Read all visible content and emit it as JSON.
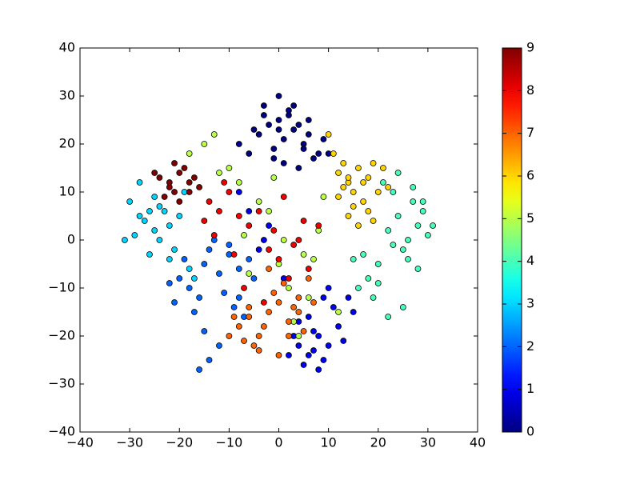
{
  "chart_data": {
    "type": "scatter",
    "colormap": "jet",
    "clim": [
      0,
      9
    ],
    "cticks": [
      0,
      1,
      2,
      3,
      4,
      5,
      6,
      7,
      8,
      9
    ],
    "xlim": [
      -40,
      40
    ],
    "ylim": [
      -40,
      40
    ],
    "xticks": [
      {
        "value": -40,
        "label": "−40"
      },
      {
        "value": -30,
        "label": "−30"
      },
      {
        "value": -20,
        "label": "−20"
      },
      {
        "value": -10,
        "label": "−10"
      },
      0,
      10,
      20,
      30,
      40
    ],
    "yticks": [
      {
        "value": -40,
        "label": "−40"
      },
      {
        "value": -30,
        "label": "−30"
      },
      {
        "value": -20,
        "label": "−20"
      },
      {
        "value": -10,
        "label": "−10"
      },
      0,
      10,
      20,
      30,
      40
    ],
    "series": [
      {
        "class": 0,
        "x": [
          -4,
          -2,
          0,
          1,
          3,
          5,
          -6,
          -1,
          2,
          4,
          6,
          8,
          -3,
          0,
          2,
          5,
          7,
          -5,
          1,
          3,
          -8,
          9,
          10,
          -1,
          4,
          6,
          0,
          -3
        ],
        "y": [
          22,
          24,
          25,
          21,
          23,
          20,
          18,
          19,
          26,
          24,
          22,
          18,
          28,
          30,
          27,
          19,
          17,
          23,
          16,
          28,
          20,
          21,
          18,
          17,
          15,
          25,
          23,
          26
        ]
      },
      {
        "class": 1,
        "x": [
          4,
          6,
          8,
          10,
          5,
          7,
          9,
          12,
          3,
          2,
          11,
          13,
          6,
          8,
          4,
          9,
          14,
          7,
          -2,
          -4,
          -6,
          -3,
          -8,
          1,
          15,
          10
        ],
        "y": [
          -22,
          -24,
          -20,
          -22,
          -26,
          -19,
          -25,
          -18,
          -20,
          -24,
          -14,
          -21,
          -16,
          -27,
          -17,
          -12,
          -12,
          -23,
          3,
          -2,
          6,
          0,
          10,
          -8,
          -15,
          -10
        ]
      },
      {
        "class": 2,
        "x": [
          -20,
          -18,
          -15,
          -12,
          -10,
          -8,
          -16,
          -14,
          -22,
          -6,
          -9,
          -11,
          -17,
          -13,
          -19,
          -7,
          -5,
          -15,
          -12,
          -21,
          -10,
          -8,
          -14,
          -16
        ],
        "y": [
          -8,
          -10,
          -5,
          -7,
          -3,
          -6,
          -12,
          -2,
          -9,
          -4,
          -14,
          -11,
          -15,
          0,
          -4,
          -16,
          -8,
          -19,
          -22,
          -13,
          -1,
          -12,
          -25,
          -27
        ]
      },
      {
        "class": 3,
        "x": [
          -30,
          -28,
          -26,
          -25,
          -24,
          -27,
          -22,
          -23,
          -29,
          -21,
          -26,
          -24,
          -20,
          -18,
          -25,
          -28,
          -22,
          -31,
          -17,
          -19
        ],
        "y": [
          8,
          5,
          6,
          2,
          0,
          4,
          3,
          6,
          1,
          -2,
          -3,
          7,
          5,
          -6,
          9,
          12,
          -4,
          0,
          -8,
          10
        ]
      },
      {
        "class": 4,
        "x": [
          22,
          24,
          26,
          28,
          25,
          27,
          23,
          29,
          30,
          21,
          20,
          18,
          16,
          19,
          26,
          24,
          28,
          31,
          25,
          22,
          17,
          20,
          27,
          23,
          29,
          15
        ],
        "y": [
          2,
          5,
          0,
          3,
          -2,
          8,
          10,
          6,
          1,
          12,
          -5,
          -8,
          -10,
          -12,
          -4,
          14,
          -6,
          3,
          -14,
          -16,
          -3,
          -9,
          11,
          -1,
          8,
          -4
        ]
      },
      {
        "class": 5,
        "x": [
          -15,
          -12,
          -8,
          -4,
          0,
          2,
          5,
          8,
          -2,
          3,
          -6,
          9,
          -18,
          -10,
          6,
          -1,
          4,
          12,
          -7,
          7,
          1,
          -13
        ],
        "y": [
          20,
          14,
          12,
          8,
          -5,
          -10,
          -3,
          2,
          6,
          -17,
          -7,
          9,
          18,
          15,
          -12,
          13,
          -20,
          -15,
          1,
          -4,
          0,
          22
        ]
      },
      {
        "class": 6,
        "x": [
          12,
          14,
          16,
          18,
          15,
          17,
          13,
          19,
          20,
          11,
          14,
          16,
          18,
          12,
          15,
          21,
          17,
          10,
          13,
          19,
          14,
          22
        ],
        "y": [
          14,
          12,
          15,
          13,
          10,
          8,
          11,
          16,
          10,
          18,
          5,
          3,
          6,
          9,
          7,
          15,
          12,
          22,
          16,
          4,
          13,
          11
        ]
      },
      {
        "class": 7,
        "x": [
          -8,
          -6,
          -4,
          -2,
          0,
          2,
          4,
          -5,
          -3,
          1,
          3,
          5,
          -7,
          -1,
          6,
          -9,
          0,
          2,
          -4,
          -6,
          4,
          -2,
          7,
          -10
        ],
        "y": [
          -18,
          -16,
          -20,
          -15,
          -13,
          -17,
          -12,
          -22,
          -18,
          -9,
          -14,
          -19,
          -21,
          -11,
          -8,
          -16,
          -24,
          -20,
          -23,
          -14,
          -15,
          -6,
          -13,
          -20
        ]
      },
      {
        "class": 8,
        "x": [
          -14,
          -12,
          -10,
          -8,
          -15,
          -11,
          -6,
          -2,
          0,
          2,
          4,
          -4,
          1,
          3,
          6,
          -9,
          -13,
          -1,
          5,
          -7,
          8,
          -3
        ],
        "y": [
          8,
          6,
          10,
          5,
          4,
          12,
          3,
          -2,
          -4,
          -8,
          0,
          6,
          9,
          -1,
          -6,
          -3,
          1,
          2,
          4,
          -10,
          3,
          -13
        ]
      },
      {
        "class": 9,
        "x": [
          -24,
          -22,
          -20,
          -18,
          -21,
          -19,
          -23,
          -17,
          -20,
          -22,
          -16,
          -25,
          -18,
          -21
        ],
        "y": [
          13,
          11,
          14,
          12,
          10,
          15,
          9,
          13,
          8,
          12,
          11,
          14,
          10,
          16
        ]
      }
    ]
  }
}
